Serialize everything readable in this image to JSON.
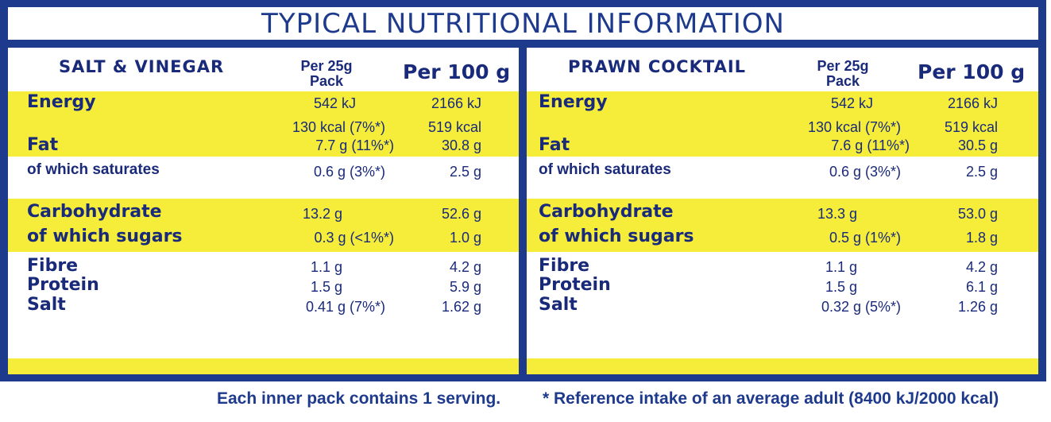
{
  "title": "TYPICAL NUTRITIONAL INFORMATION",
  "colors": {
    "navy": "#1e3a8c",
    "yellow": "#f5ed3a"
  },
  "left": {
    "name": "SALT & VINEGAR",
    "per25_line1": "Per 25g",
    "per25_line2": "Pack",
    "per100": "Per 100 g",
    "rows": {
      "energy_label": "Energy",
      "energy_25": "542 kJ",
      "energy_100": "2166 kJ",
      "kcal_25": "130 kcal (7%*)",
      "kcal_100": "519 kcal",
      "fat_label": "Fat",
      "fat_25": "7.7 g (11%*)",
      "fat_100": "30.8 g",
      "sat_label": "of which saturates",
      "sat_25": "0.6 g (3%*)",
      "sat_100": "2.5 g",
      "carb_label": "Carbohydrate",
      "carb_25": "13.2 g",
      "carb_100": "52.6 g",
      "sugar_label": "of which sugars",
      "sugar_25": "0.3 g (<1%*)",
      "sugar_100": "1.0 g",
      "fibre_label": "Fibre",
      "fibre_25": "1.1 g",
      "fibre_100": "4.2 g",
      "protein_label": "Protein",
      "protein_25": "1.5 g",
      "protein_100": "5.9 g",
      "salt_label": "Salt",
      "salt_25": "0.41 g (7%*)",
      "salt_100": "1.62 g"
    }
  },
  "right": {
    "name": "PRAWN COCKTAIL",
    "per25_line1": "Per 25g",
    "per25_line2": "Pack",
    "per100": "Per 100 g",
    "rows": {
      "energy_label": "Energy",
      "energy_25": "542 kJ",
      "energy_100": "2166 kJ",
      "kcal_25": "130 kcal (7%*)",
      "kcal_100": "519 kcal",
      "fat_label": "Fat",
      "fat_25": "7.6 g (11%*)",
      "fat_100": "30.5 g",
      "sat_label": "of which saturates",
      "sat_25": "0.6 g (3%*)",
      "sat_100": "2.5 g",
      "carb_label": "Carbohydrate",
      "carb_25": "13.3 g",
      "carb_100": "53.0 g",
      "sugar_label": "of which sugars",
      "sugar_25": "0.5 g (1%*)",
      "sugar_100": "1.8 g",
      "fibre_label": "Fibre",
      "fibre_25": "1.1 g",
      "fibre_100": "4.2 g",
      "protein_label": "Protein",
      "protein_25": "1.5 g",
      "protein_100": "6.1 g",
      "salt_label": "Salt",
      "salt_25": "0.32 g (5%*)",
      "salt_100": "1.26 g"
    }
  },
  "footer": {
    "serving": "Each inner pack contains 1 serving.",
    "reference": "* Reference intake of an average adult (8400 kJ/2000 kcal)"
  }
}
